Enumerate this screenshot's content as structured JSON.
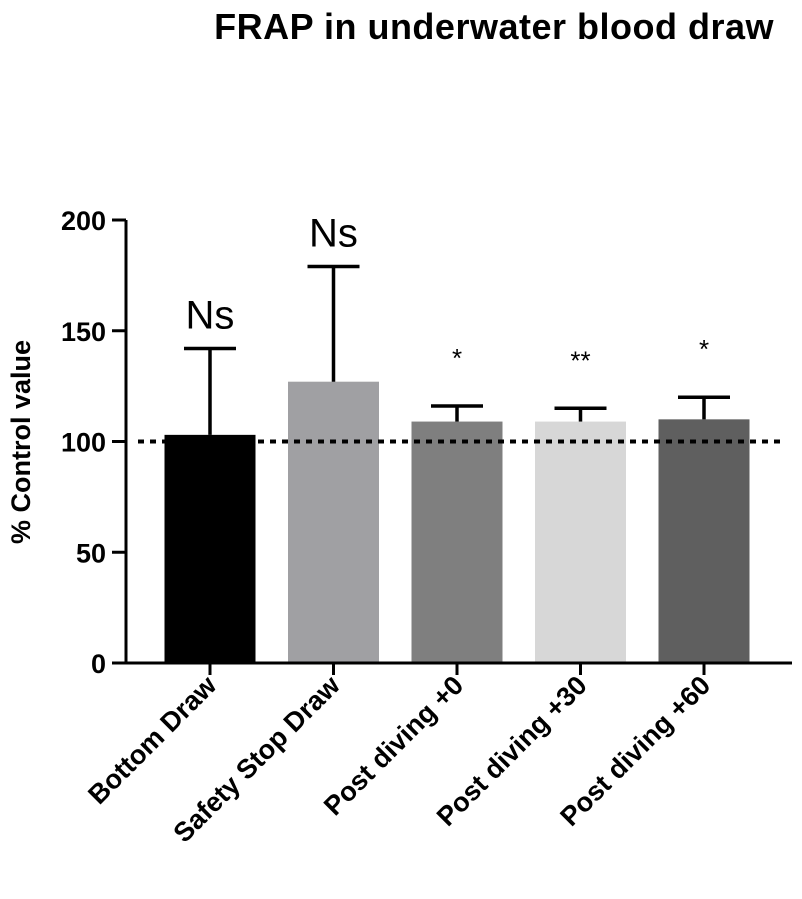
{
  "chart_data": {
    "type": "bar",
    "title": "FRAP in underwater blood draw",
    "xlabel": "",
    "ylabel": "% Control value",
    "ylim": [
      0,
      200
    ],
    "yticks": [
      0,
      50,
      100,
      150,
      200
    ],
    "grid": false,
    "categories": [
      "Bottom Draw",
      "Safety Stop Draw",
      "Post diving +0",
      "Post diving +30",
      "Post diving +60"
    ],
    "values": [
      103,
      127,
      109,
      109,
      110
    ],
    "error_upper": [
      142,
      179,
      116,
      115,
      120
    ],
    "significance": [
      "Ns",
      "Ns",
      "*",
      "**",
      "*"
    ],
    "reference_line": 100,
    "colors": [
      "#000000",
      "#a0a0a3",
      "#7f7f7f",
      "#d7d7d7",
      "#5f5f5f"
    ]
  }
}
